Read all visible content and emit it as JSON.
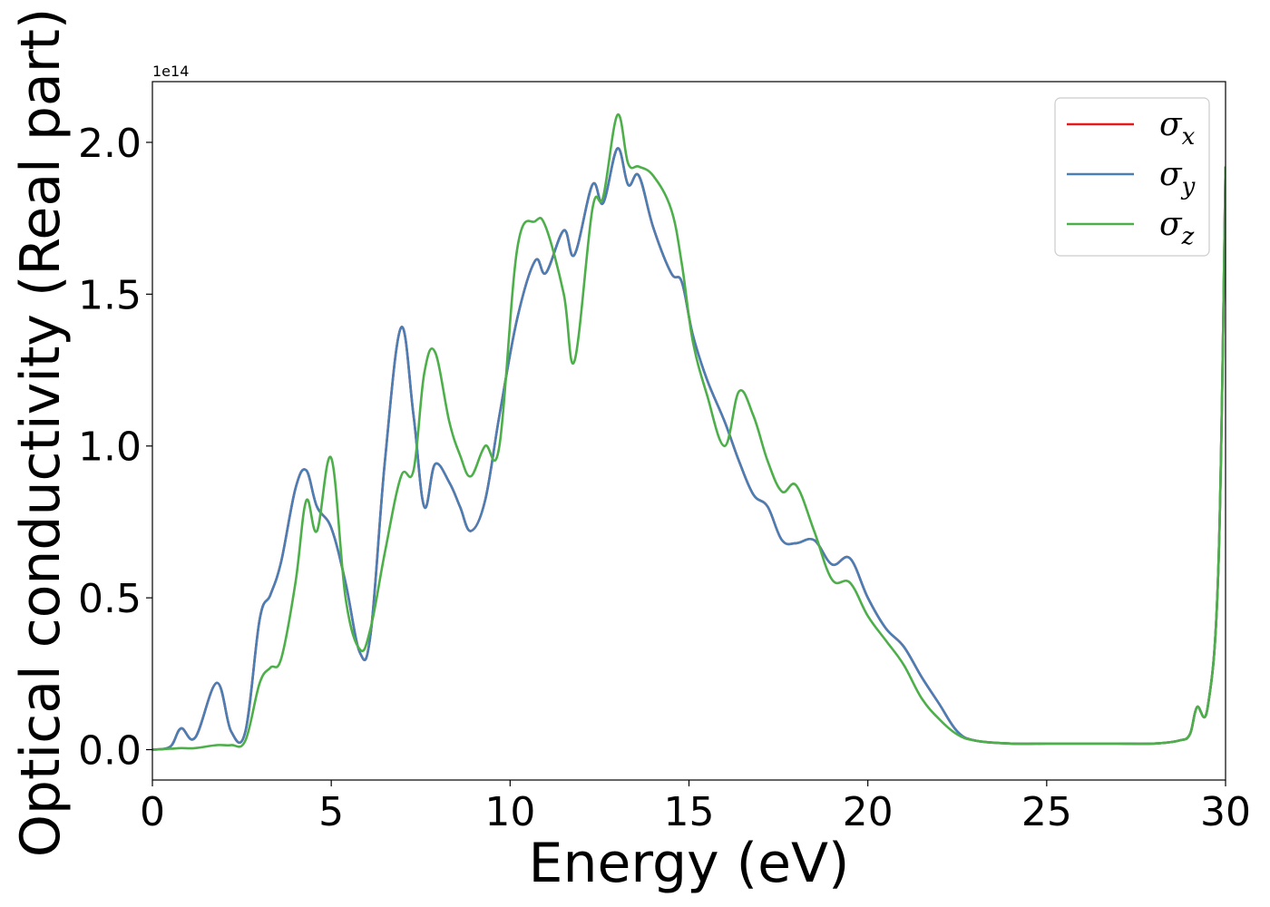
{
  "chart_data": {
    "type": "line",
    "title": "",
    "xlabel": "Energy (eV)",
    "ylabel": "Optical conductivity (Real part)",
    "y_offset_label": "1e14",
    "xlim": [
      0,
      30
    ],
    "ylim": [
      -0.1,
      2.2
    ],
    "xticks": [
      0,
      5,
      10,
      15,
      20,
      25,
      30
    ],
    "xtick_labels": [
      "0",
      "5",
      "10",
      "15",
      "20",
      "25",
      "30"
    ],
    "yticks": [
      0.0,
      0.5,
      1.0,
      1.5,
      2.0
    ],
    "ytick_labels": [
      "0.0",
      "0.5",
      "1.0",
      "1.5",
      "2.0"
    ],
    "grid": false,
    "legend_position": "top-right",
    "legend": [
      {
        "symbol": "σ",
        "sub": "x",
        "color": "#e41a1c"
      },
      {
        "symbol": "σ",
        "sub": "y",
        "color": "#4a7fb5"
      },
      {
        "symbol": "σ",
        "sub": "z",
        "color": "#4daf4a"
      }
    ],
    "x": [
      0,
      0.5,
      0.8,
      1.2,
      1.8,
      2.2,
      2.6,
      3.0,
      3.3,
      3.6,
      4.0,
      4.3,
      4.6,
      5.0,
      5.4,
      5.8,
      6.1,
      6.5,
      6.95,
      7.3,
      7.6,
      7.9,
      8.3,
      8.6,
      8.9,
      9.3,
      9.7,
      10.2,
      10.7,
      11.0,
      11.5,
      11.8,
      12.3,
      12.6,
      13.0,
      13.3,
      13.6,
      14.0,
      14.5,
      14.8,
      15.1,
      15.5,
      16.0,
      16.4,
      16.8,
      17.2,
      17.6,
      18.0,
      18.5,
      19.0,
      19.5,
      20.0,
      20.5,
      21.0,
      21.5,
      22.0,
      22.5,
      23.0,
      24.0,
      25.0,
      26.0,
      27.0,
      28.0,
      28.7,
      29.0,
      29.2,
      29.5,
      29.8,
      30.0
    ],
    "series": [
      {
        "name": "σx",
        "color": "#e41a1c",
        "values": [
          0,
          0.01,
          0.07,
          0.04,
          0.22,
          0.06,
          0.06,
          0.43,
          0.51,
          0.62,
          0.86,
          0.92,
          0.8,
          0.73,
          0.55,
          0.32,
          0.38,
          0.95,
          1.39,
          1.1,
          0.8,
          0.94,
          0.88,
          0.8,
          0.72,
          0.82,
          1.1,
          1.42,
          1.61,
          1.57,
          1.71,
          1.63,
          1.86,
          1.8,
          1.98,
          1.86,
          1.89,
          1.72,
          1.57,
          1.54,
          1.37,
          1.22,
          1.08,
          0.95,
          0.84,
          0.8,
          0.69,
          0.68,
          0.69,
          0.61,
          0.63,
          0.5,
          0.4,
          0.34,
          0.24,
          0.15,
          0.06,
          0.03,
          0.02,
          0.02,
          0.02,
          0.02,
          0.02,
          0.03,
          0.05,
          0.14,
          0.14,
          0.6,
          1.92
        ]
      },
      {
        "name": "σy",
        "color": "#4a7fb5",
        "values": [
          0,
          0.01,
          0.07,
          0.04,
          0.22,
          0.06,
          0.06,
          0.43,
          0.51,
          0.62,
          0.86,
          0.92,
          0.8,
          0.73,
          0.55,
          0.32,
          0.38,
          0.95,
          1.39,
          1.1,
          0.8,
          0.94,
          0.88,
          0.8,
          0.72,
          0.82,
          1.1,
          1.42,
          1.61,
          1.57,
          1.71,
          1.63,
          1.86,
          1.8,
          1.98,
          1.86,
          1.89,
          1.72,
          1.57,
          1.54,
          1.37,
          1.22,
          1.08,
          0.95,
          0.84,
          0.8,
          0.69,
          0.68,
          0.69,
          0.61,
          0.63,
          0.5,
          0.4,
          0.34,
          0.24,
          0.15,
          0.06,
          0.03,
          0.02,
          0.02,
          0.02,
          0.02,
          0.02,
          0.03,
          0.05,
          0.14,
          0.14,
          0.6,
          1.92
        ]
      },
      {
        "name": "σz",
        "color": "#4daf4a",
        "values": [
          0,
          0.003,
          0.005,
          0.005,
          0.015,
          0.015,
          0.03,
          0.22,
          0.27,
          0.3,
          0.55,
          0.82,
          0.72,
          0.96,
          0.5,
          0.33,
          0.4,
          0.65,
          0.9,
          0.92,
          1.24,
          1.31,
          1.08,
          0.97,
          0.9,
          1.0,
          1.0,
          1.65,
          1.74,
          1.72,
          1.5,
          1.28,
          1.78,
          1.82,
          2.09,
          1.93,
          1.92,
          1.89,
          1.78,
          1.6,
          1.35,
          1.17,
          1.0,
          1.18,
          1.1,
          0.95,
          0.85,
          0.87,
          0.72,
          0.56,
          0.55,
          0.44,
          0.36,
          0.28,
          0.17,
          0.1,
          0.05,
          0.03,
          0.02,
          0.02,
          0.02,
          0.02,
          0.02,
          0.03,
          0.05,
          0.14,
          0.14,
          0.6,
          1.92
        ]
      }
    ]
  }
}
